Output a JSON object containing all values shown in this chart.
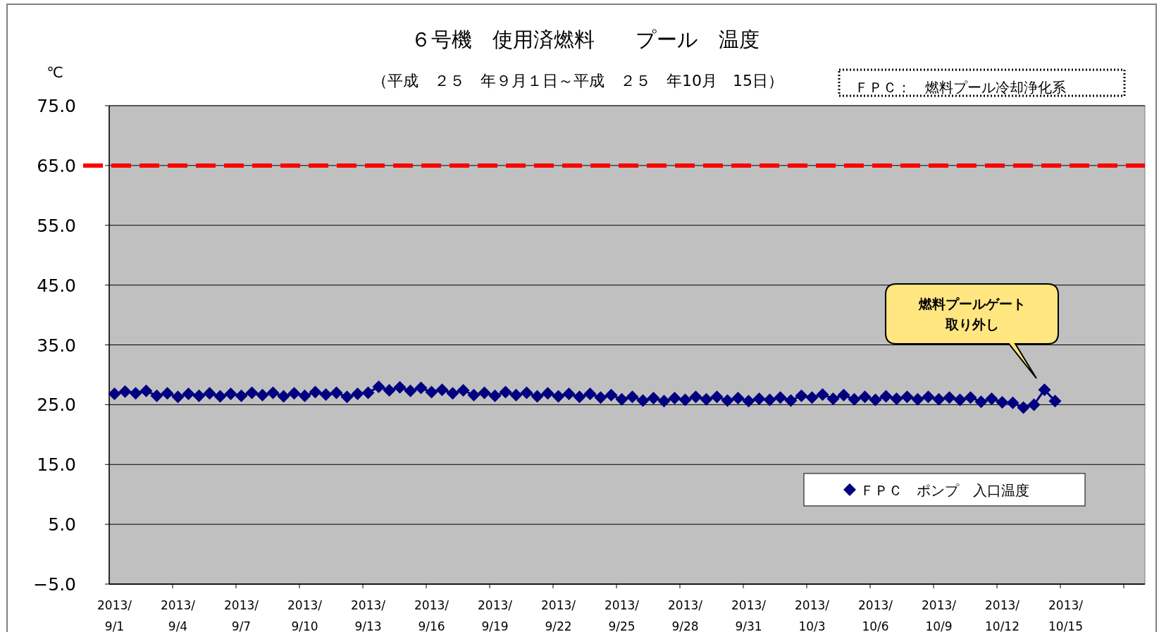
{
  "chart_data": {
    "type": "line",
    "title": "６号機　使用済燃料　　プール　温度",
    "subtitle": "（平成　２５　年９月１日～平成　２５　年10月　15日）",
    "ylabel": "℃",
    "annotations": [
      "ＦＰＣ：　燃料プール冷却浄化系",
      "燃料プールゲート取り外し"
    ],
    "categories": [
      "2013/9/1",
      null,
      null,
      null,
      null,
      null,
      "2013/9/4",
      null,
      null,
      null,
      null,
      null,
      "2013/9/7",
      null,
      null,
      null,
      null,
      null,
      "2013/9/10",
      null,
      null,
      null,
      null,
      null,
      "2013/9/13",
      null,
      null,
      null,
      null,
      null,
      "2013/9/16",
      null,
      null,
      null,
      null,
      null,
      "2013/9/19",
      null,
      null,
      null,
      null,
      null,
      "2013/9/22",
      null,
      null,
      null,
      null,
      null,
      "2013/9/25",
      null,
      null,
      null,
      null,
      null,
      "2013/9/28",
      null,
      null,
      null,
      null,
      null,
      "2013/9/31",
      null,
      null,
      null,
      null,
      null,
      "2013/10/3",
      null,
      null,
      null,
      null,
      null,
      "2013/10/6",
      null,
      null,
      null,
      null,
      null,
      "2013/10/9",
      null,
      null,
      null,
      null,
      null,
      "2013/10/12",
      null,
      null,
      null,
      null,
      null,
      "2013/10/15",
      null,
      null,
      null,
      null,
      null,
      null,
      null
    ],
    "series": [
      {
        "name": "ＦＰＣ　ポンプ　入口温度",
        "color": "#000080",
        "values": [
          26.8,
          27.2,
          26.9,
          27.3,
          26.5,
          26.9,
          26.3,
          26.8,
          26.5,
          26.9,
          26.4,
          26.8,
          26.5,
          27.0,
          26.6,
          27.0,
          26.4,
          26.9,
          26.5,
          27.1,
          26.7,
          27.0,
          26.3,
          26.8,
          27.0,
          28.0,
          27.4,
          27.9,
          27.3,
          27.8,
          27.1,
          27.5,
          26.9,
          27.4,
          26.6,
          27.0,
          26.5,
          27.1,
          26.6,
          27.0,
          26.4,
          26.9,
          26.4,
          26.8,
          26.3,
          26.8,
          26.2,
          26.6,
          25.9,
          26.3,
          25.7,
          26.1,
          25.6,
          26.1,
          25.8,
          26.3,
          25.9,
          26.3,
          25.7,
          26.1,
          25.6,
          26.0,
          25.8,
          26.2,
          25.7,
          26.5,
          26.2,
          26.7,
          26.0,
          26.6,
          25.9,
          26.3,
          25.8,
          26.4,
          26.0,
          26.3,
          25.9,
          26.3,
          25.9,
          26.2,
          25.8,
          26.2,
          25.5,
          26.0,
          25.4,
          25.3,
          24.5,
          25.0,
          27.5,
          25.6,
          null,
          null,
          null,
          null,
          null,
          null,
          null,
          null
        ]
      }
    ],
    "ylim": [
      -5,
      75
    ],
    "yticks": [
      {
        "value": -5,
        "label": "−5.0"
      },
      {
        "value": 5,
        "label": "5.0"
      },
      {
        "value": 15,
        "label": "15.0"
      },
      {
        "value": 25,
        "label": "25.0"
      },
      {
        "value": 35,
        "label": "35.0"
      },
      {
        "value": 45,
        "label": "45.0"
      },
      {
        "value": 55,
        "label": "55.0"
      },
      {
        "value": 65,
        "label": "65.0"
      },
      {
        "value": 75,
        "label": "75.0"
      }
    ],
    "grid": "y",
    "legend": "bottom right",
    "marker": "diamond",
    "line_style": "solid",
    "ref_lines": [
      {
        "axis": "y",
        "value": 65,
        "color": "#ff0000",
        "line_style": "dashed"
      }
    ]
  }
}
